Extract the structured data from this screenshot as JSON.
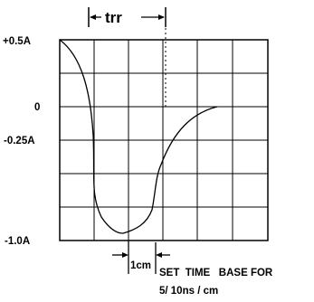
{
  "figure": {
    "trr_label": "trr",
    "y_labels": {
      "top": "+0.5A",
      "zero": "0",
      "quarter": "-0.25A",
      "bottom": "-1.0A"
    },
    "scale_label": "1cm",
    "note": {
      "line1": "SET  TIME   BASE FOR",
      "line2": "5/ 10ns / cm"
    }
  },
  "colors": {
    "ink": "#000000",
    "background": "#ffffff"
  }
}
